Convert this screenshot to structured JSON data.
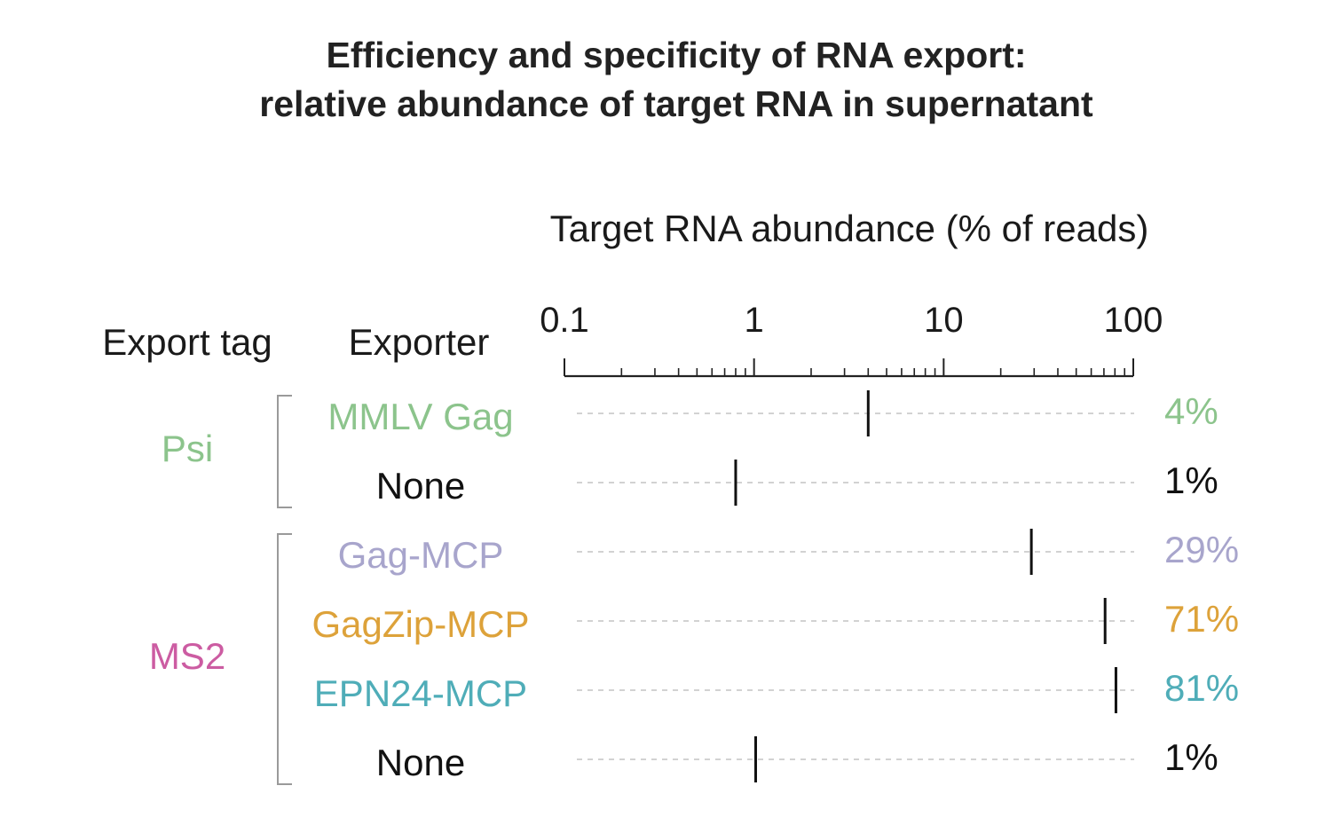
{
  "title_line1": "Efficiency and specificity of RNA export:",
  "title_line2": "relative abundance of target RNA in supernatant",
  "header_export_tag": "Export tag",
  "header_exporter": "Exporter",
  "chart_data": {
    "type": "scatter",
    "title": "Efficiency and specificity of RNA export: relative abundance of target RNA in supernatant",
    "xlabel": "Target RNA abundance (% of reads)",
    "x_scale": "log",
    "xlim": [
      0.1,
      100
    ],
    "x_ticks": [
      "0.1",
      "1",
      "10",
      "100"
    ],
    "grid": false,
    "groups": [
      {
        "name": "Psi",
        "color": "#8cc48c",
        "rows": [
          0,
          1
        ]
      },
      {
        "name": "MS2",
        "color": "#cc5ca2",
        "rows": [
          2,
          3,
          4,
          5
        ]
      }
    ],
    "rows": [
      {
        "exporter": "MMLV Gag",
        "export_tag": "Psi",
        "value": 4,
        "value_label": "4%",
        "color": "#8cc48c"
      },
      {
        "exporter": "None",
        "export_tag": "Psi",
        "value": 0.8,
        "value_label": "1%",
        "color": "#111111"
      },
      {
        "exporter": "Gag-MCP",
        "export_tag": "MS2",
        "value": 29,
        "value_label": "29%",
        "color": "#a8a5cc"
      },
      {
        "exporter": "GagZip-MCP",
        "export_tag": "MS2",
        "value": 71,
        "value_label": "71%",
        "color": "#dda23a"
      },
      {
        "exporter": "EPN24-MCP",
        "export_tag": "MS2",
        "value": 81,
        "value_label": "81%",
        "color": "#4fadb8"
      },
      {
        "exporter": "None",
        "export_tag": "MS2",
        "value": 1.02,
        "value_label": "1%",
        "color": "#111111"
      }
    ]
  }
}
